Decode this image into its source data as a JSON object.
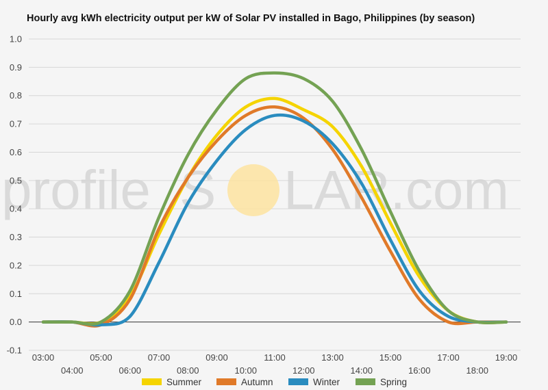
{
  "chart_data": {
    "type": "line",
    "title": "Hourly avg kWh electricity output per kW of Solar PV installed in Bago, Philippines (by season)",
    "xlabel": "",
    "ylabel": "",
    "x": [
      "03:00",
      "04:00",
      "05:00",
      "06:00",
      "07:00",
      "08:00",
      "09:00",
      "10:00",
      "11:00",
      "12:00",
      "13:00",
      "14:00",
      "15:00",
      "16:00",
      "17:00",
      "18:00",
      "19:00"
    ],
    "ylim": [
      -0.1,
      1.0
    ],
    "yticks": [
      "-0.1",
      "0.0",
      "0.1",
      "0.2",
      "0.3",
      "0.4",
      "0.5",
      "0.6",
      "0.7",
      "0.8",
      "0.9",
      "1.0"
    ],
    "grid": true,
    "legend_position": "bottom",
    "series": [
      {
        "name": "Summer",
        "color": "#f5d400",
        "values": [
          0.0,
          0.0,
          0.0,
          0.09,
          0.31,
          0.51,
          0.66,
          0.76,
          0.79,
          0.75,
          0.69,
          0.55,
          0.35,
          0.16,
          0.04,
          0.0,
          0.0
        ]
      },
      {
        "name": "Autumn",
        "color": "#e07a29",
        "values": [
          0.0,
          0.0,
          -0.01,
          0.08,
          0.33,
          0.51,
          0.64,
          0.73,
          0.76,
          0.72,
          0.61,
          0.44,
          0.25,
          0.08,
          0.0,
          0.0,
          0.0
        ]
      },
      {
        "name": "Winter",
        "color": "#2a8cbf",
        "values": [
          0.0,
          0.0,
          -0.01,
          0.02,
          0.21,
          0.42,
          0.57,
          0.68,
          0.73,
          0.71,
          0.63,
          0.49,
          0.29,
          0.11,
          0.02,
          0.0,
          0.0
        ]
      },
      {
        "name": "Spring",
        "color": "#74a253",
        "values": [
          0.0,
          0.0,
          0.0,
          0.11,
          0.37,
          0.59,
          0.75,
          0.86,
          0.88,
          0.86,
          0.78,
          0.61,
          0.39,
          0.18,
          0.04,
          0.0,
          0.0
        ]
      }
    ]
  },
  "watermark": {
    "text_left": "profile",
    "text_right": "S",
    "text_end": "LAR.com",
    "sun_color": "#fde3a0"
  }
}
